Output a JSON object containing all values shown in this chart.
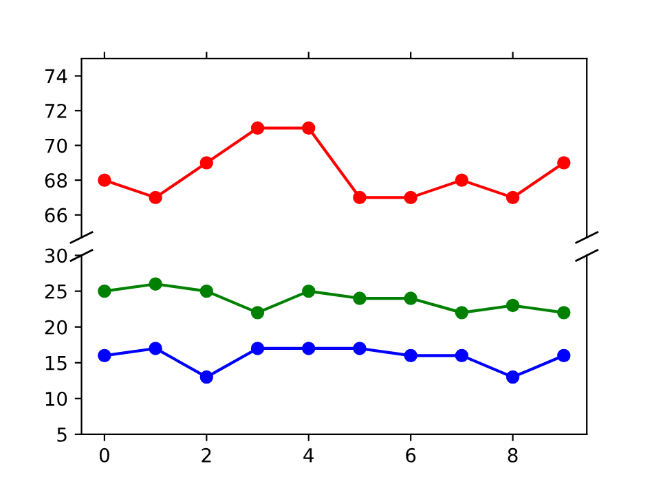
{
  "chart_data": [
    {
      "type": "line",
      "x": [
        0,
        1,
        2,
        3,
        4,
        5,
        6,
        7,
        8,
        9
      ],
      "marker": "circle",
      "xlim": [
        -0.45,
        9.45
      ],
      "ylim": [
        64.7,
        75
      ],
      "yticks": [
        66,
        68,
        70,
        72,
        74
      ],
      "xticks": [
        0,
        2,
        4,
        6,
        8
      ],
      "tick_labels": "y",
      "series": [
        {
          "color": "#ff0000",
          "values": [
            68,
            67,
            69,
            71,
            71,
            67,
            67,
            68,
            67,
            69
          ]
        }
      ]
    },
    {
      "type": "line",
      "x": [
        0,
        1,
        2,
        3,
        4,
        5,
        6,
        7,
        8,
        9
      ],
      "marker": "circle",
      "xlim": [
        -0.45,
        9.45
      ],
      "ylim": [
        5,
        30
      ],
      "yticks": [
        5,
        10,
        15,
        20,
        25,
        30
      ],
      "xticks": [
        0,
        2,
        4,
        6,
        8
      ],
      "series": [
        {
          "color": "#008000",
          "values": [
            25,
            26,
            25,
            22,
            25,
            24,
            24,
            22,
            23,
            22
          ]
        },
        {
          "color": "#0000ff",
          "values": [
            16,
            17,
            13,
            17,
            17,
            17,
            16,
            16,
            13,
            16
          ]
        }
      ]
    }
  ]
}
